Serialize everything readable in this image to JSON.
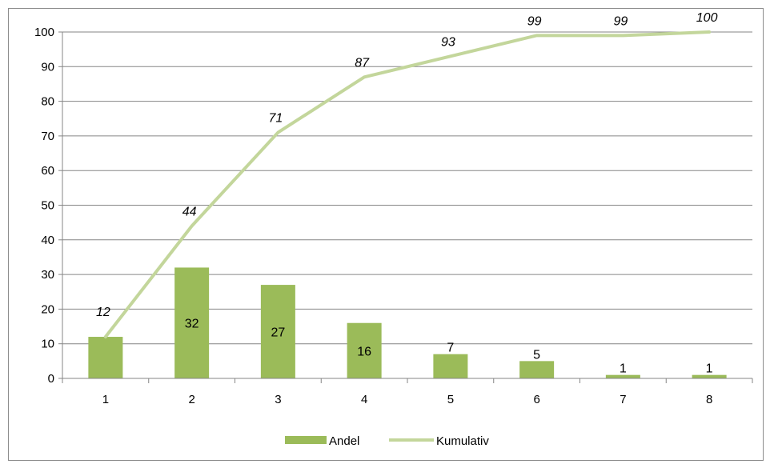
{
  "chart_data": {
    "type": "bar",
    "categories": [
      "1",
      "2",
      "3",
      "4",
      "5",
      "6",
      "7",
      "8"
    ],
    "ylim": [
      0,
      100
    ],
    "ytick_step": 10,
    "grid": true,
    "legend_position": "bottom",
    "series": [
      {
        "name": "Andel",
        "type": "bar",
        "color": "#9bbb59",
        "values": [
          12,
          32,
          27,
          16,
          7,
          5,
          1,
          1
        ],
        "labels": [
          "",
          "32",
          "27",
          "16",
          "7",
          "5",
          "1",
          "1"
        ]
      },
      {
        "name": "Kumulativ",
        "type": "line",
        "color": "#c3d69b",
        "values": [
          12,
          44,
          71,
          87,
          93,
          99,
          99,
          100
        ],
        "labels": [
          "12",
          "44",
          "71",
          "87",
          "93",
          "99",
          "99",
          "100"
        ]
      }
    ]
  }
}
